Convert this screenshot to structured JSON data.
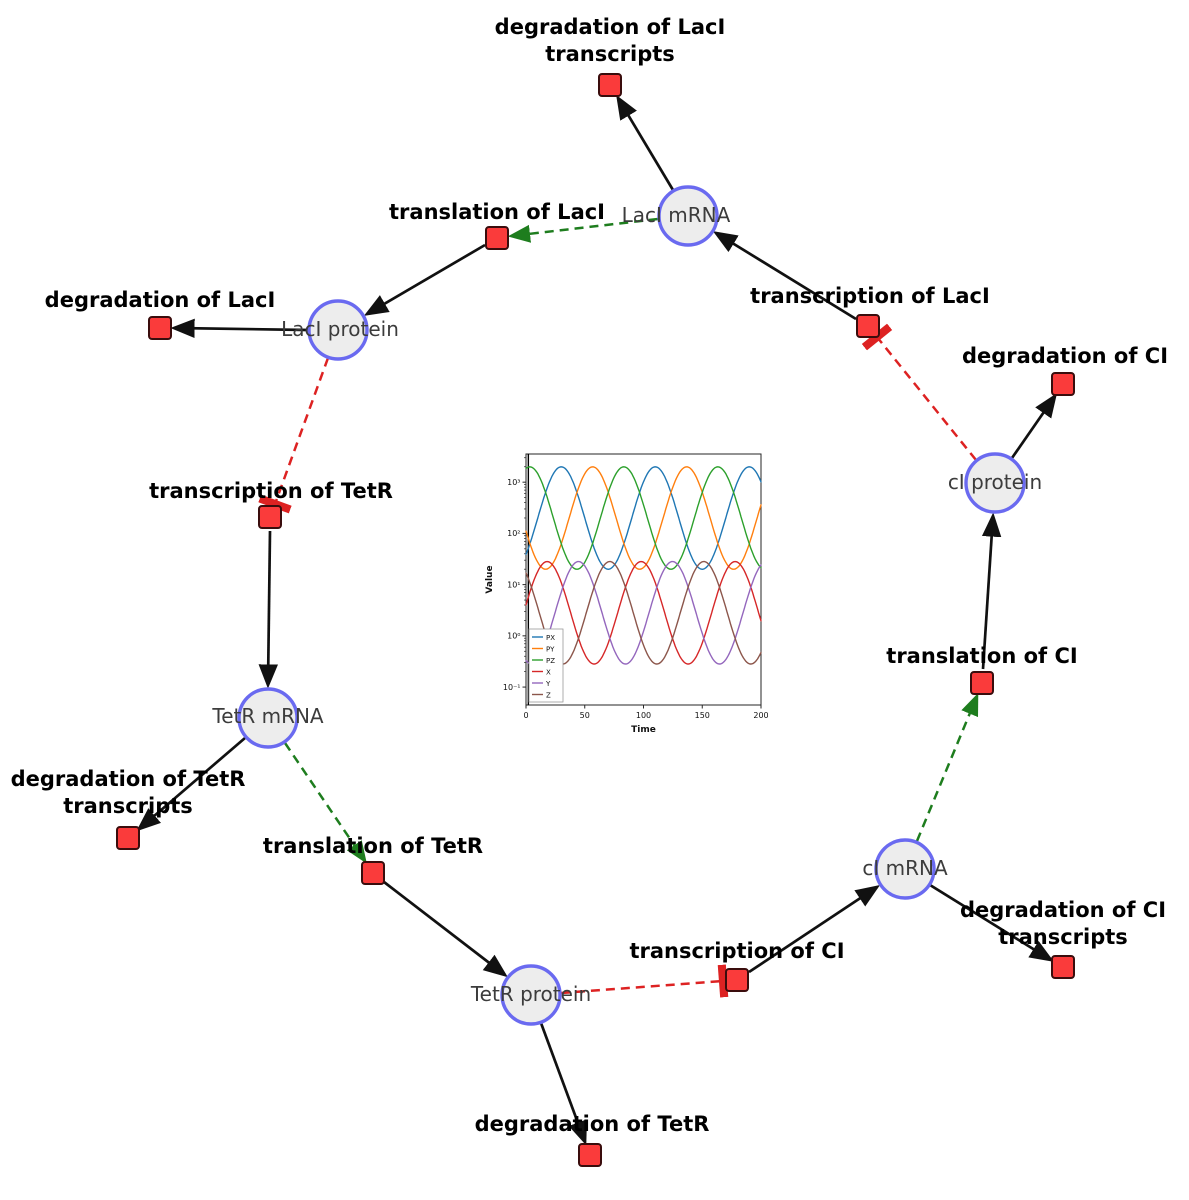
{
  "diagram": {
    "species": [
      {
        "id": "laci-mrna",
        "label": "LacI mRNA"
      },
      {
        "id": "laci-protein",
        "label": "LacI protein"
      },
      {
        "id": "tetr-mrna",
        "label": "TetR mRNA"
      },
      {
        "id": "tetr-protein",
        "label": "TetR protein"
      },
      {
        "id": "ci-mrna",
        "label": "cI mRNA"
      },
      {
        "id": "ci-protein",
        "label": "cI protein"
      }
    ],
    "reactions": [
      {
        "id": "degradation-laci-transcripts",
        "lines": [
          "degradation of LacI",
          "transcripts"
        ]
      },
      {
        "id": "translation-laci",
        "lines": [
          "translation of LacI"
        ]
      },
      {
        "id": "transcription-laci",
        "lines": [
          "transcription of LacI"
        ]
      },
      {
        "id": "degradation-laci",
        "lines": [
          "degradation of LacI"
        ]
      },
      {
        "id": "degradation-ci",
        "lines": [
          "degradation of CI"
        ]
      },
      {
        "id": "transcription-tetr",
        "lines": [
          "transcription of TetR"
        ]
      },
      {
        "id": "translation-ci",
        "lines": [
          "translation of CI"
        ]
      },
      {
        "id": "degradation-tetr-transcripts",
        "lines": [
          "degradation of TetR",
          "transcripts"
        ]
      },
      {
        "id": "translation-tetr",
        "lines": [
          "translation of TetR"
        ]
      },
      {
        "id": "degradation-ci-transcripts",
        "lines": [
          "degradation of CI",
          "transcripts"
        ]
      },
      {
        "id": "transcription-ci",
        "lines": [
          "transcription of CI"
        ]
      },
      {
        "id": "degradation-tetr",
        "lines": [
          "degradation of TetR"
        ]
      }
    ],
    "edges": [
      {
        "from": "LacI mRNA",
        "to": "degradation of LacI transcripts",
        "type": "consumption"
      },
      {
        "from": "translation of LacI",
        "to": "LacI protein",
        "type": "production"
      },
      {
        "from": "transcription of LacI",
        "to": "LacI mRNA",
        "type": "production"
      },
      {
        "from": "LacI protein",
        "to": "degradation of LacI",
        "type": "consumption"
      },
      {
        "from": "cI protein",
        "to": "degradation of CI",
        "type": "consumption"
      },
      {
        "from": "transcription of TetR",
        "to": "TetR mRNA",
        "type": "production"
      },
      {
        "from": "TetR mRNA",
        "to": "degradation of TetR transcripts",
        "type": "consumption"
      },
      {
        "from": "translation of TetR",
        "to": "TetR protein",
        "type": "production"
      },
      {
        "from": "TetR protein",
        "to": "degradation of TetR",
        "type": "consumption"
      },
      {
        "from": "transcription of CI",
        "to": "cI mRNA",
        "type": "production"
      },
      {
        "from": "cI mRNA",
        "to": "degradation of CI transcripts",
        "type": "consumption"
      },
      {
        "from": "translation of CI",
        "to": "cI protein",
        "type": "production"
      },
      {
        "from": "LacI mRNA",
        "to": "translation of LacI",
        "type": "modifier"
      },
      {
        "from": "TetR mRNA",
        "to": "translation of TetR",
        "type": "modifier"
      },
      {
        "from": "cI mRNA",
        "to": "translation of CI",
        "type": "modifier"
      },
      {
        "from": "LacI protein",
        "to": "transcription of TetR",
        "type": "inhibition"
      },
      {
        "from": "TetR protein",
        "to": "transcription of CI",
        "type": "inhibition"
      },
      {
        "from": "cI protein",
        "to": "transcription of LacI",
        "type": "inhibition"
      }
    ],
    "colors": {
      "species_fill": "#ededed",
      "species_stroke": "#6a6af0",
      "reaction_fill": "#fa3b3b",
      "reaction_stroke": "#3a0d0d",
      "edge": "#111111",
      "modifier_edge": "#1e7d1e",
      "inhibition_edge": "#dd2222"
    }
  },
  "chart_data": {
    "type": "line",
    "title": "",
    "xlabel": "Time",
    "ylabel": "Value",
    "yscale": "log",
    "xlim": [
      0,
      200
    ],
    "ylim_log": [
      -1.35,
      3.55
    ],
    "x_ticks": [
      0,
      50,
      100,
      150,
      200
    ],
    "y_tick_exponents": [
      -1,
      0,
      1,
      2,
      3
    ],
    "legend_position": "lower left",
    "grid": false,
    "annotations": [
      {
        "type": "vline",
        "t": 2,
        "color": "#000000"
      }
    ],
    "x_samples": [
      0,
      10,
      20,
      30,
      40,
      50,
      60,
      70,
      80,
      90,
      100,
      110,
      120,
      130,
      140,
      150,
      160,
      170,
      180,
      190,
      200
    ],
    "series": [
      {
        "name": "PX",
        "color": "#1f77b4",
        "log_center": 2.3,
        "log_amplitude": 1.0,
        "period": 80,
        "phase": 10,
        "values": [
          39,
          200,
          1020,
          2000,
          1020,
          200,
          39,
          20,
          39,
          200,
          1020,
          2000,
          1020,
          200,
          39,
          20,
          39,
          200,
          1020,
          2000,
          1020
        ]
      },
      {
        "name": "PY",
        "color": "#ff7f0e",
        "log_center": 2.3,
        "log_amplitude": 1.0,
        "period": 80,
        "phase": 36.7,
        "values": [
          110,
          27,
          22,
          63,
          360,
          1460,
          1850,
          630,
          110,
          27,
          22,
          63,
          360,
          1460,
          1850,
          630,
          110,
          27,
          22,
          63,
          360
        ]
      },
      {
        "name": "PZ",
        "color": "#2ca02c",
        "log_center": 2.3,
        "log_amplitude": 1.0,
        "period": 80,
        "phase": 63.3,
        "values": [
          1850,
          1460,
          360,
          63,
          22,
          27,
          110,
          630,
          1850,
          1460,
          360,
          63,
          22,
          27,
          110,
          630,
          1850,
          1460,
          360,
          63,
          22
        ]
      },
      {
        "name": "X",
        "color": "#d62728",
        "log_center": 0.45,
        "log_amplitude": 1.0,
        "period": 80,
        "phase": -2,
        "values": [
          4.0,
          18,
          27,
          11,
          2.0,
          0.44,
          0.29,
          0.73,
          4.0,
          18,
          27,
          11,
          2.0,
          0.44,
          0.29,
          0.73,
          4.0,
          18,
          27,
          11,
          2.0
        ]
      },
      {
        "name": "Y",
        "color": "#9467bd",
        "log_center": 0.45,
        "log_amplitude": 1.0,
        "period": 80,
        "phase": 24.7,
        "values": [
          0.33,
          0.34,
          1.2,
          7.1,
          24,
          23,
          6.5,
          1.1,
          0.33,
          0.34,
          1.2,
          7.1,
          24,
          23,
          6.5,
          1.1,
          0.33,
          0.34,
          1.2,
          7.1,
          24
        ]
      },
      {
        "name": "Z",
        "color": "#8c564b",
        "log_center": 0.45,
        "log_amplitude": 1.0,
        "period": 80,
        "phase": 51.3,
        "values": [
          17,
          3.6,
          0.66,
          0.29,
          0.47,
          2.2,
          12,
          28,
          17,
          3.6,
          0.66,
          0.29,
          0.47,
          2.2,
          12,
          28,
          17,
          3.6,
          0.66,
          0.29,
          0.47
        ]
      }
    ]
  }
}
